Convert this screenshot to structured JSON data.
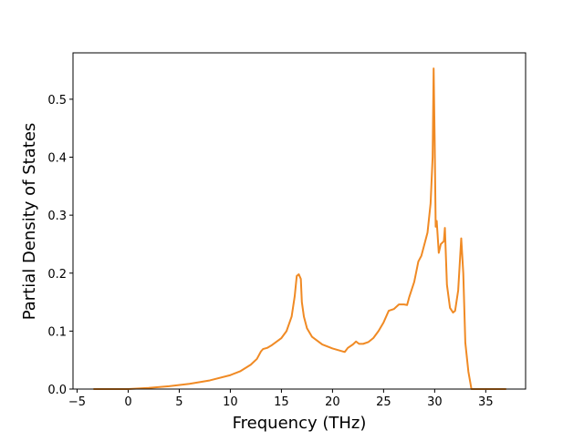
{
  "chart_data": {
    "type": "line",
    "x_label": "Frequency (THz)",
    "y_label": "Partial Density of States",
    "xlim": [
      -5.4,
      38.9
    ],
    "ylim": [
      0,
      0.58
    ],
    "xticks": [
      {
        "value": -5,
        "label": "−5"
      },
      0,
      5,
      10,
      15,
      20,
      25,
      30,
      35
    ],
    "yticks": [
      {
        "value": 0,
        "label": "0.0"
      },
      0.1,
      0.2,
      0.3,
      0.4,
      0.5
    ],
    "color": "#f08a24",
    "x": [
      -3.4,
      0,
      2,
      4,
      6,
      8,
      10,
      11,
      12,
      12.6,
      13,
      13.2,
      13.6,
      14,
      15,
      15.5,
      16,
      16.3,
      16.5,
      16.7,
      16.9,
      17,
      17.2,
      17.5,
      18,
      19,
      20,
      21,
      21.2,
      21.5,
      22,
      22.3,
      22.6,
      23,
      23.5,
      24,
      24.5,
      25,
      25.5,
      26,
      26.5,
      27,
      27.3,
      27.5,
      28,
      28.4,
      28.7,
      29,
      29.3,
      29.6,
      29.8,
      29.9,
      30,
      30.1,
      30.2,
      30.4,
      30.6,
      30.9,
      31,
      31.2,
      31.5,
      31.8,
      32,
      32.3,
      32.6,
      32.8,
      33,
      33.3,
      33.6,
      37
    ],
    "values": [
      0,
      0,
      0.002,
      0.005,
      0.009,
      0.015,
      0.024,
      0.031,
      0.042,
      0.052,
      0.065,
      0.069,
      0.071,
      0.075,
      0.088,
      0.1,
      0.125,
      0.16,
      0.195,
      0.198,
      0.19,
      0.15,
      0.125,
      0.105,
      0.09,
      0.077,
      0.07,
      0.065,
      0.064,
      0.071,
      0.077,
      0.082,
      0.078,
      0.078,
      0.081,
      0.088,
      0.1,
      0.115,
      0.135,
      0.138,
      0.146,
      0.146,
      0.145,
      0.158,
      0.185,
      0.22,
      0.23,
      0.25,
      0.27,
      0.32,
      0.4,
      0.553,
      0.43,
      0.28,
      0.29,
      0.235,
      0.25,
      0.255,
      0.278,
      0.18,
      0.14,
      0.132,
      0.135,
      0.17,
      0.26,
      0.2,
      0.08,
      0.03,
      0,
      0
    ]
  }
}
